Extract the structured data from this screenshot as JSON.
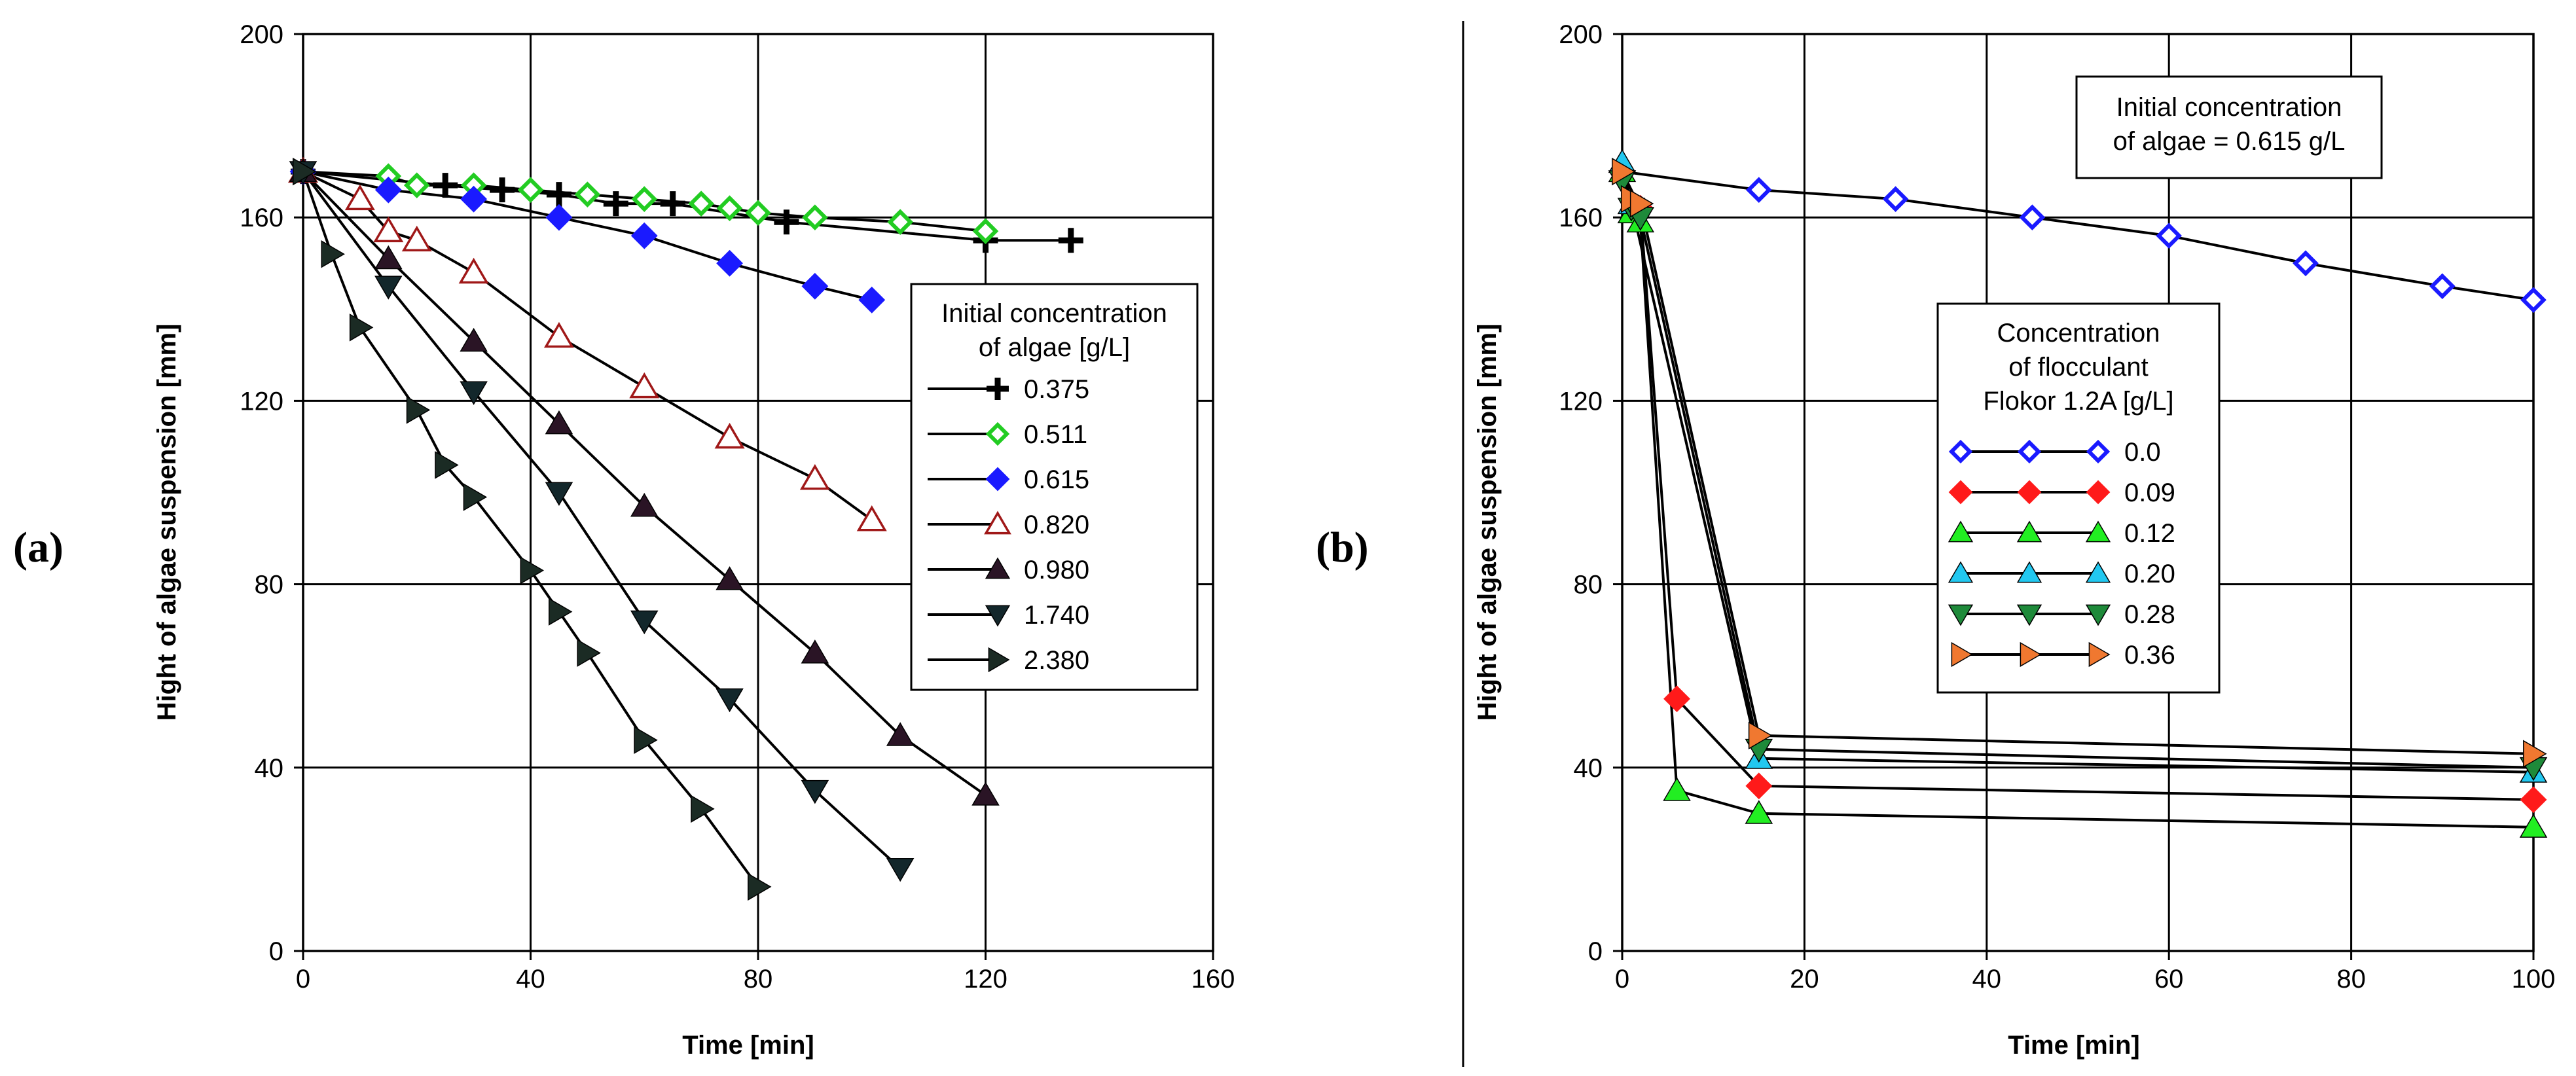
{
  "chart_data": [
    {
      "type": "line",
      "panel_label": "(a)",
      "xlabel": "Time [min]",
      "ylabel": "Hight of algae suspension [mm]",
      "xlim": [
        0,
        160
      ],
      "ylim": [
        0,
        200
      ],
      "xticks": [
        0,
        40,
        80,
        120,
        160
      ],
      "yticks": [
        0,
        40,
        80,
        120,
        160,
        200
      ],
      "grid": true,
      "legend": {
        "title": [
          "Initial concentration",
          "of algae [g/L]"
        ],
        "position": "right"
      },
      "series": [
        {
          "name": "0.375",
          "marker": "plus",
          "color": "#000000",
          "fill": "#000000",
          "x": [
            0,
            25,
            35,
            45,
            55,
            65,
            85,
            120,
            135
          ],
          "y": [
            170,
            167,
            166,
            165,
            163,
            163,
            159,
            155,
            155
          ]
        },
        {
          "name": "0.511",
          "marker": "diamond-open",
          "color": "#22cc22",
          "fill": "#22cc22",
          "x": [
            0,
            15,
            20,
            30,
            40,
            50,
            60,
            70,
            75,
            80,
            90,
            105,
            120
          ],
          "y": [
            170,
            169,
            167,
            167,
            166,
            165,
            164,
            163,
            162,
            161,
            160,
            159,
            157
          ]
        },
        {
          "name": "0.615",
          "marker": "diamond",
          "color": "#1a1aff",
          "fill": "#1a1aff",
          "x": [
            0,
            15,
            30,
            45,
            60,
            75,
            90,
            100
          ],
          "y": [
            170,
            166,
            164,
            160,
            156,
            150,
            145,
            142
          ]
        },
        {
          "name": "0.820",
          "marker": "triangle-up-open",
          "color": "#a01818",
          "fill": "#a01818",
          "x": [
            0,
            10,
            15,
            20,
            30,
            45,
            60,
            75,
            90,
            100
          ],
          "y": [
            170,
            164,
            157,
            155,
            148,
            134,
            123,
            112,
            103,
            94
          ]
        },
        {
          "name": "0.980",
          "marker": "triangle-up",
          "color": "#2a1425",
          "fill": "#2a1425",
          "x": [
            0,
            15,
            30,
            45,
            60,
            75,
            90,
            105,
            120
          ],
          "y": [
            170,
            151,
            133,
            115,
            97,
            81,
            65,
            47,
            34
          ]
        },
        {
          "name": "1.740",
          "marker": "triangle-down",
          "color": "#13272b",
          "fill": "#13272b",
          "x": [
            0,
            15,
            30,
            45,
            60,
            75,
            90,
            105
          ],
          "y": [
            170,
            145,
            122,
            100,
            72,
            55,
            35,
            18
          ]
        },
        {
          "name": "2.380",
          "marker": "triangle-right",
          "color": "#1b2b24",
          "fill": "#1b2b24",
          "x": [
            0,
            5,
            10,
            20,
            25,
            30,
            40,
            45,
            50,
            60,
            70,
            80
          ],
          "y": [
            170,
            152,
            136,
            118,
            106,
            99,
            83,
            74,
            65,
            46,
            31,
            14
          ]
        }
      ]
    },
    {
      "type": "line",
      "panel_label": "(b)",
      "xlabel": "Time [min]",
      "ylabel": "Hight of algae suspension [mm]",
      "xlim": [
        0,
        100
      ],
      "ylim": [
        0,
        200
      ],
      "xticks": [
        0,
        20,
        40,
        60,
        80,
        100
      ],
      "yticks": [
        0,
        40,
        80,
        120,
        160,
        200
      ],
      "grid": true,
      "annotation": [
        "Initial concentration",
        "of algae = 0.615 g/L"
      ],
      "legend": {
        "title": [
          "Concentration",
          "of flocculant",
          "Flokor 1.2A [g/L]"
        ],
        "position": "center"
      },
      "series": [
        {
          "name": "0.0",
          "marker": "diamond-open",
          "color": "#1a1aff",
          "fill": "#1a1aff",
          "x": [
            0,
            15,
            30,
            45,
            60,
            75,
            90,
            100
          ],
          "y": [
            170,
            166,
            164,
            160,
            156,
            150,
            145,
            142
          ]
        },
        {
          "name": "0.09",
          "marker": "diamond",
          "color": "#ff1a1a",
          "fill": "#ff1a1a",
          "x": [
            0,
            2,
            6,
            15,
            100
          ],
          "y": [
            170,
            162,
            55,
            36,
            33
          ]
        },
        {
          "name": "0.12",
          "marker": "triangle-up",
          "color": "#22ee22",
          "fill": "#22ee22",
          "x": [
            0,
            1,
            2,
            6,
            15,
            100
          ],
          "y": [
            170,
            161,
            159,
            35,
            30,
            27
          ]
        },
        {
          "name": "0.20",
          "marker": "triangle-up",
          "color": "#22c8f0",
          "fill": "#22c8f0",
          "x": [
            0,
            1,
            15,
            100
          ],
          "y": [
            172,
            163,
            42,
            39
          ]
        },
        {
          "name": "0.28",
          "marker": "triangle-down",
          "color": "#1e8a3a",
          "fill": "#1e8a3a",
          "x": [
            0,
            1,
            2,
            15,
            100
          ],
          "y": [
            168,
            162,
            160,
            44,
            40
          ]
        },
        {
          "name": "0.36",
          "marker": "triangle-right",
          "color": "#f07830",
          "fill": "#f07830",
          "x": [
            0,
            1,
            2,
            15,
            100
          ],
          "y": [
            170,
            164,
            163,
            47,
            43
          ]
        }
      ]
    }
  ]
}
